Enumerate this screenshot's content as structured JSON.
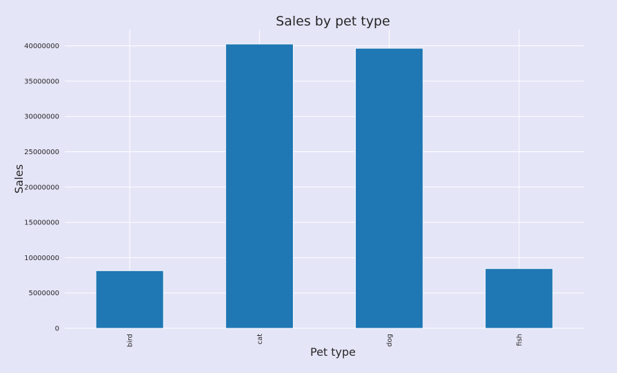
{
  "chart_data": {
    "type": "bar",
    "title": "Sales by pet type",
    "xlabel": "Pet type",
    "ylabel": "Sales",
    "categories": [
      "bird",
      "cat",
      "dog",
      "fish"
    ],
    "values": [
      8150000,
      40250000,
      39650000,
      8450000
    ],
    "ylim": [
      0,
      42300000
    ],
    "yticks": [
      0,
      5000000,
      10000000,
      15000000,
      20000000,
      25000000,
      30000000,
      35000000,
      40000000
    ],
    "ytick_labels": [
      "0",
      "5000000",
      "10000000",
      "15000000",
      "20000000",
      "25000000",
      "30000000",
      "35000000",
      "40000000"
    ],
    "grid": true,
    "legend": false,
    "bar_color": "#1f77b4",
    "background_color": "#e5e5f8",
    "grid_color": "#ffffff"
  }
}
